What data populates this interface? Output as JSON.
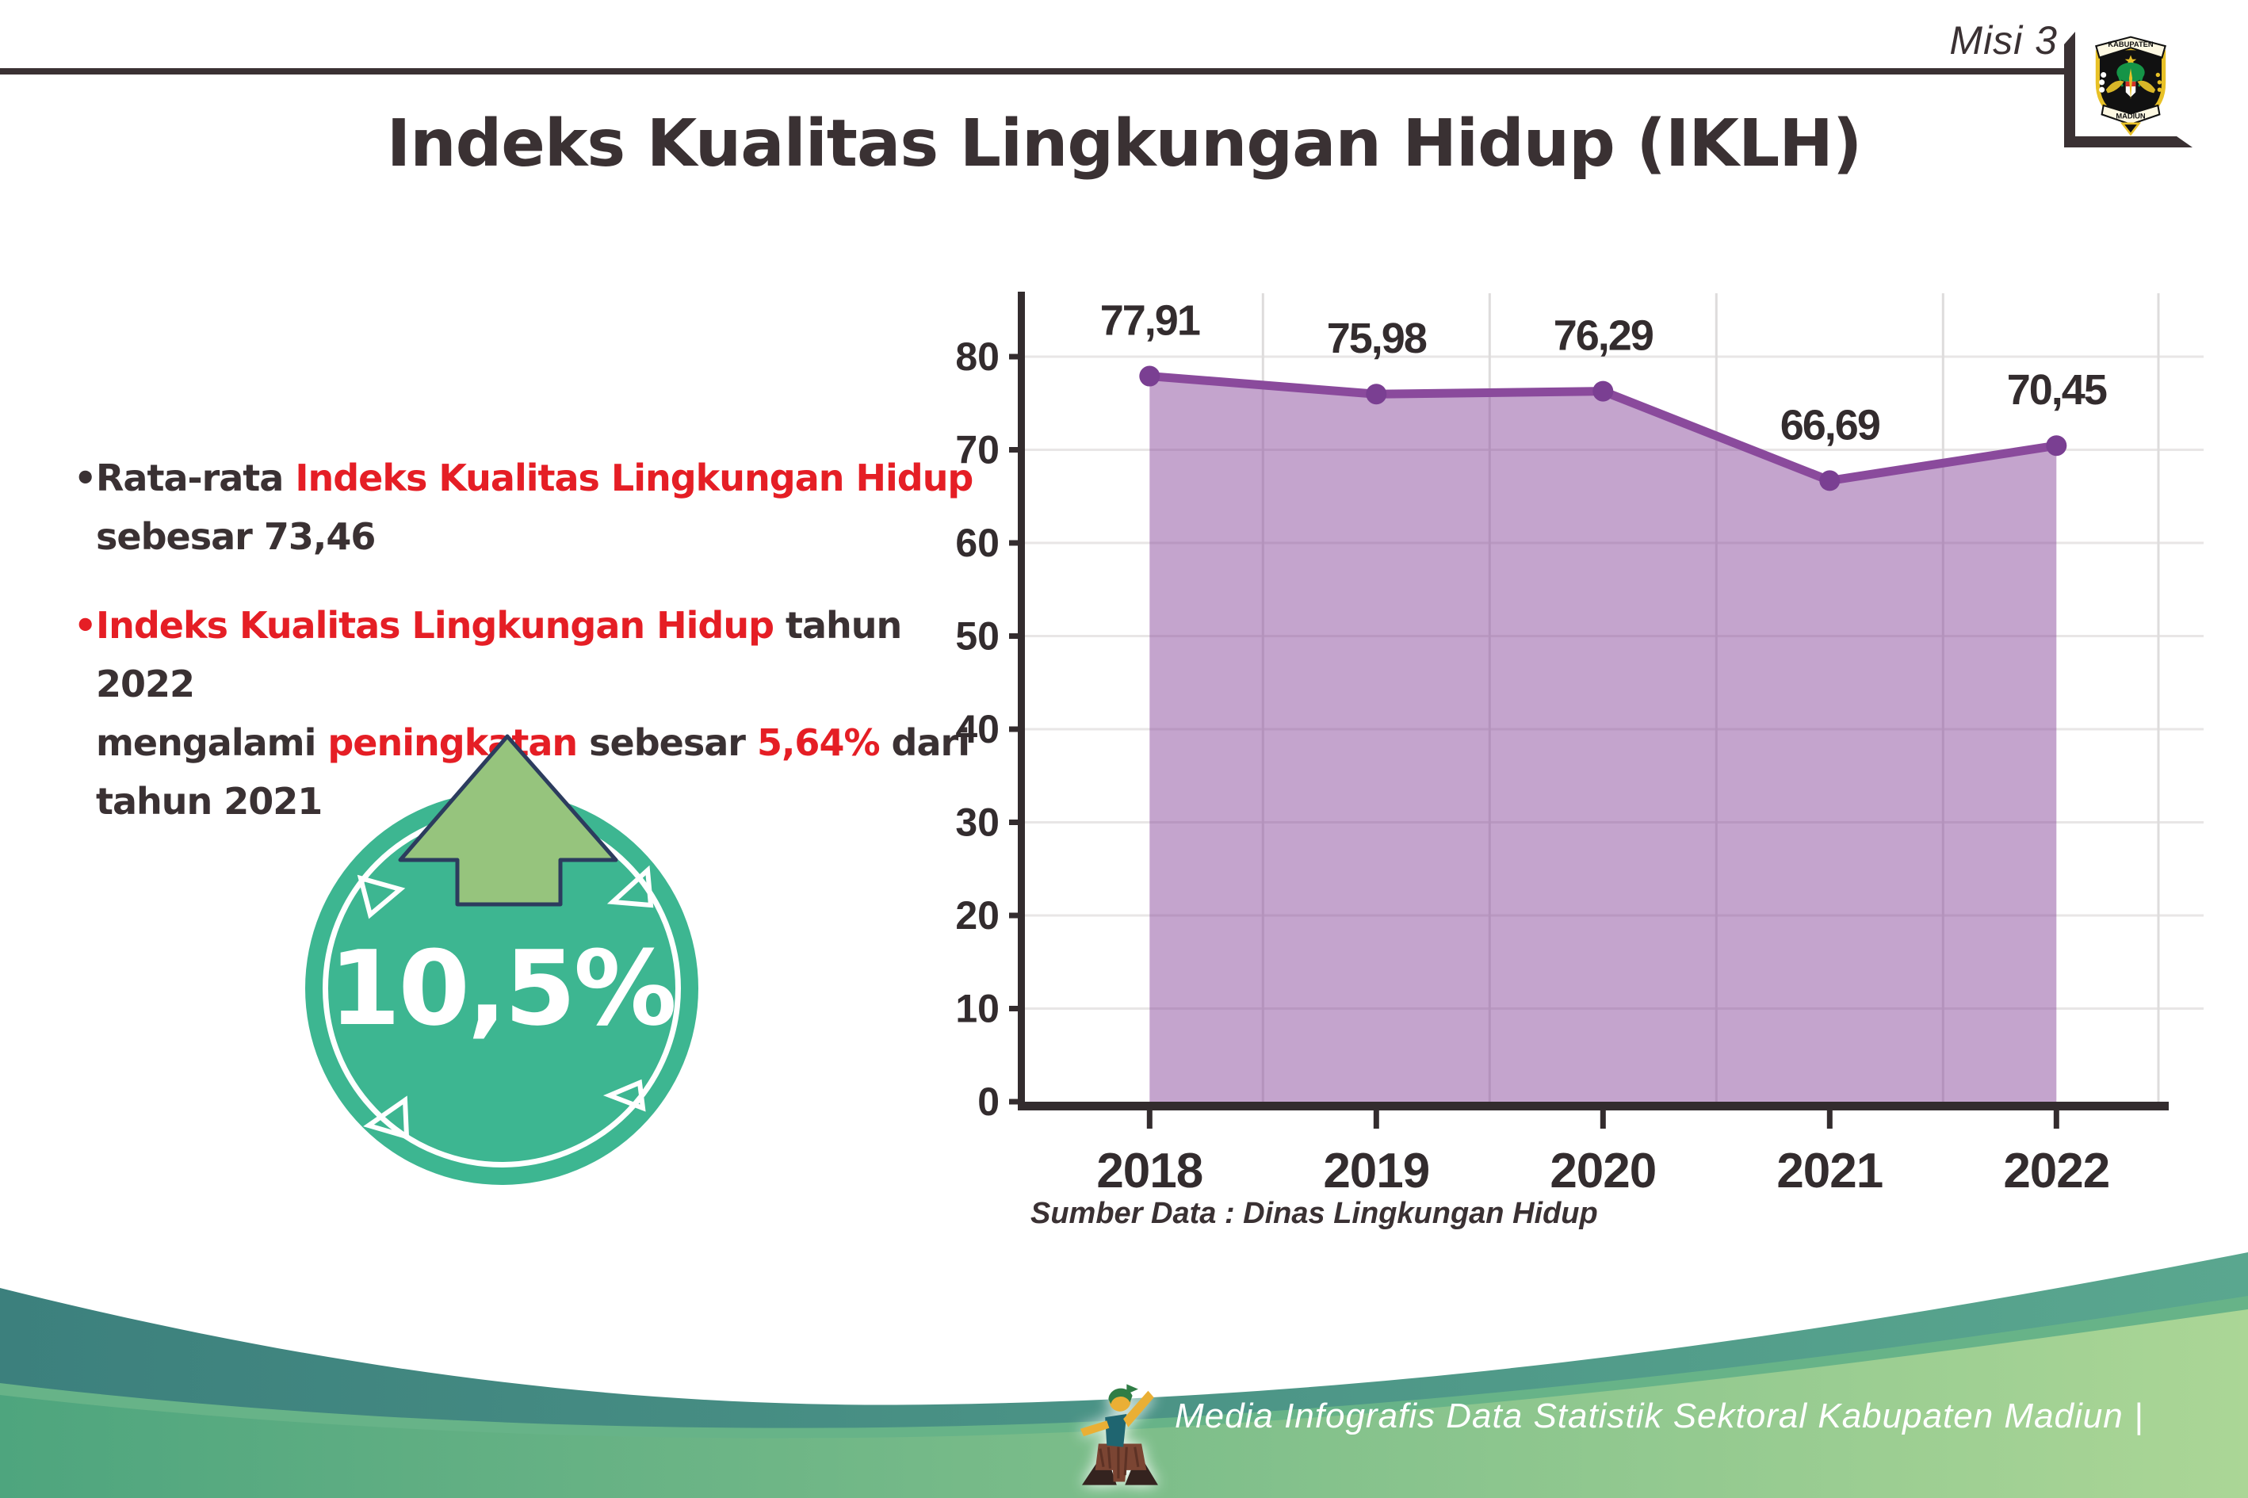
{
  "header": {
    "misi": "Misi 3",
    "title": "Indeks Kualitas Lingkungan Hidup (IKLH)"
  },
  "logo": {
    "top_text": "KABUPATEN",
    "bottom_text": "MADIUN"
  },
  "bullets": [
    {
      "dot_color": "#3a3133",
      "lines": [
        [
          {
            "t": "Rata-rata ",
            "c": "dark"
          },
          {
            "t": "Indeks Kualitas Lingkungan Hidup",
            "c": "red"
          }
        ],
        [
          {
            "t": "sebesar 73,46",
            "c": "dark"
          }
        ]
      ]
    },
    {
      "dot_color": "#e51e25",
      "lines": [
        [
          {
            "t": "Indeks Kualitas Lingkungan Hidup",
            "c": "red"
          },
          {
            "t": " tahun 2022",
            "c": "dark"
          }
        ],
        [
          {
            "t": "mengalami ",
            "c": "dark"
          },
          {
            "t": "peningkatan",
            "c": "red"
          },
          {
            "t": " sebesar ",
            "c": "dark"
          },
          {
            "t": "5,64%",
            "c": "red"
          },
          {
            "t": " dari",
            "c": "dark"
          }
        ],
        [
          {
            "t": "tahun 2021",
            "c": "dark"
          }
        ]
      ]
    }
  ],
  "badge": {
    "percent": "10,5%",
    "circle_color": "#3db691",
    "arrow_color": "#96c47d",
    "arrow_outline": "#2c3c5e"
  },
  "chart_data": {
    "type": "area",
    "title": "",
    "xlabel": "",
    "ylabel": "",
    "categories": [
      "2018",
      "2019",
      "2020",
      "2021",
      "2022"
    ],
    "values": [
      77.91,
      75.98,
      76.29,
      66.69,
      70.45
    ],
    "value_labels": [
      "77,91",
      "75,98",
      "76,29",
      "66,69",
      "70,45"
    ],
    "ylim": [
      0,
      87
    ],
    "yticks": [
      0,
      10,
      20,
      30,
      40,
      50,
      60,
      70,
      80
    ],
    "grid": true,
    "legend": "none",
    "line_color": "#8a4a9c",
    "marker_color": "#7a3f92",
    "fill_color": "rgba(138,74,156,0.5)",
    "source": "Sumber Data : Dinas Lingkungan Hidup"
  },
  "footer": {
    "text": "Media Infografis Data Statistik Sektoral Kabupaten Madiun |"
  }
}
